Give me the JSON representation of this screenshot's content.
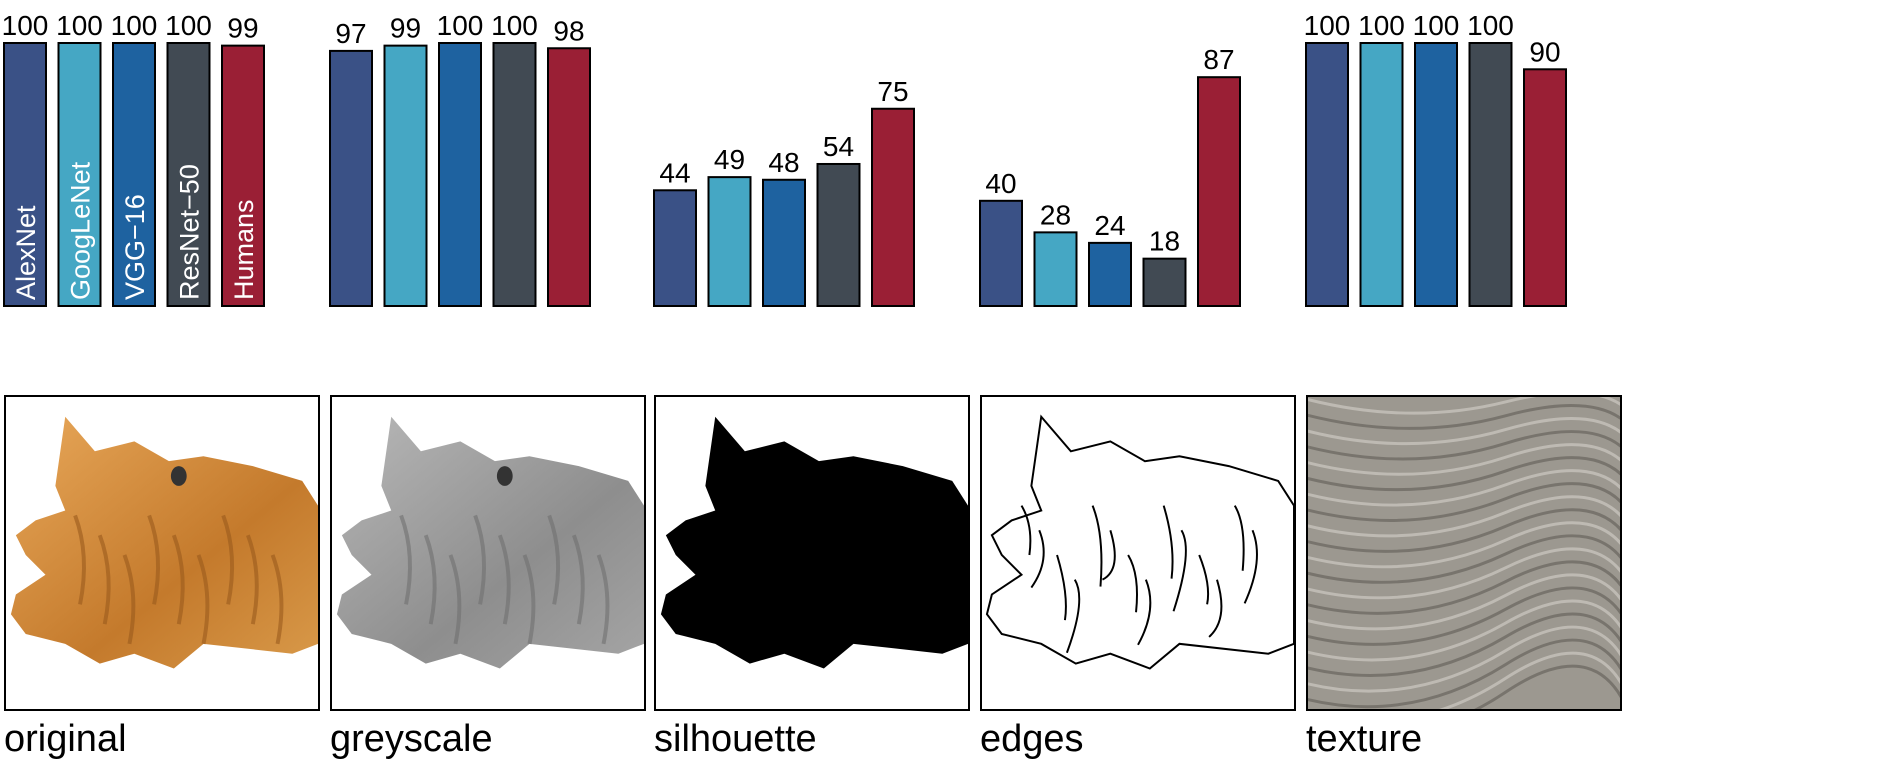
{
  "chart_data": {
    "type": "bar",
    "ylim": [
      0,
      100
    ],
    "grid": false,
    "series": [
      {
        "name": "AlexNet",
        "color": "#3a5186"
      },
      {
        "name": "GoogLeNet",
        "color": "#45a7c4"
      },
      {
        "name": "VGG−16",
        "color": "#1e62a0"
      },
      {
        "name": "ResNet−50",
        "color": "#414a53"
      },
      {
        "name": "Humans",
        "color": "#9a1f35"
      }
    ],
    "panels": [
      {
        "name": "original",
        "values": [
          100,
          100,
          100,
          100,
          99
        ],
        "image": "cat-photo-color"
      },
      {
        "name": "greyscale",
        "values": [
          97,
          99,
          100,
          100,
          98
        ],
        "image": "cat-photo-greyscale"
      },
      {
        "name": "silhouette",
        "values": [
          44,
          49,
          48,
          54,
          75
        ],
        "image": "cat-silhouette"
      },
      {
        "name": "edges",
        "values": [
          40,
          28,
          24,
          18,
          87
        ],
        "image": "cat-edge-drawing"
      },
      {
        "name": "texture",
        "values": [
          100,
          100,
          100,
          100,
          90
        ],
        "image": "elephant-skin-texture"
      }
    ]
  }
}
